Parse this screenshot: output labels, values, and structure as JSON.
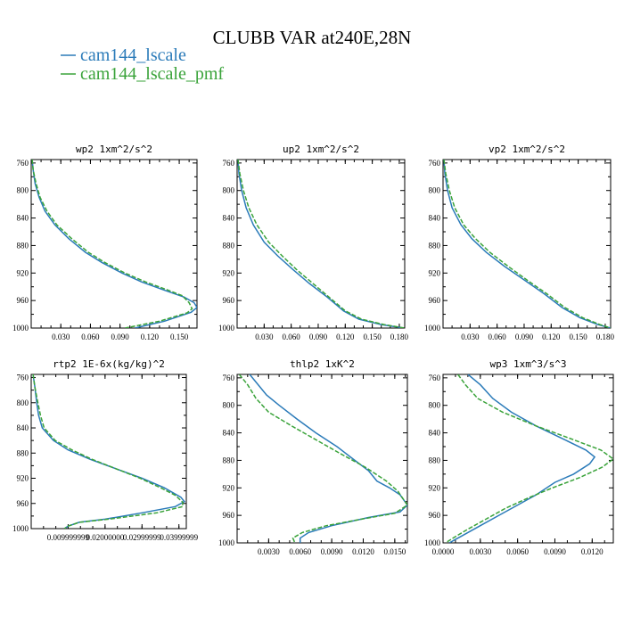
{
  "figure": {
    "title": "CLUBB VAR at240E,28N",
    "legend": [
      {
        "label": "cam144_lscale",
        "color": "#2b7bb9",
        "dash": "solid"
      },
      {
        "label": "cam144_lscale_pmf",
        "color": "#3aa33a",
        "dash": "dashed"
      }
    ]
  },
  "chart_data": [
    {
      "type": "line",
      "title": "wp2  1xm^2/s^2",
      "y_ticks": [
        760,
        800,
        840,
        880,
        920,
        960,
        1000
      ],
      "ylim": [
        755,
        1000
      ],
      "x_ticks": [
        0.03,
        0.06,
        0.09,
        0.12,
        0.15
      ],
      "x_tick_labels": [
        "0.030",
        "0.060",
        "0.090",
        "0.120",
        "0.150"
      ],
      "xlim": [
        0.0,
        0.168
      ],
      "series": [
        {
          "name": "cam144_lscale",
          "color": "#2b7bb9",
          "dash": "solid",
          "points": [
            [
              0.001,
              755
            ],
            [
              0.002,
              770
            ],
            [
              0.004,
              790
            ],
            [
              0.008,
              810
            ],
            [
              0.014,
              830
            ],
            [
              0.024,
              850
            ],
            [
              0.038,
              870
            ],
            [
              0.055,
              890
            ],
            [
              0.072,
              905
            ],
            [
              0.092,
              920
            ],
            [
              0.112,
              933
            ],
            [
              0.135,
              945
            ],
            [
              0.155,
              955
            ],
            [
              0.165,
              963
            ],
            [
              0.168,
              970
            ],
            [
              0.162,
              977
            ],
            [
              0.135,
              990
            ],
            [
              0.105,
              1000
            ]
          ]
        },
        {
          "name": "cam144_lscale_pmf",
          "color": "#3aa33a",
          "dash": "dashed",
          "points": [
            [
              0.001,
              755
            ],
            [
              0.002,
              770
            ],
            [
              0.005,
              790
            ],
            [
              0.009,
              810
            ],
            [
              0.016,
              830
            ],
            [
              0.026,
              850
            ],
            [
              0.041,
              870
            ],
            [
              0.058,
              890
            ],
            [
              0.075,
              905
            ],
            [
              0.095,
              920
            ],
            [
              0.116,
              933
            ],
            [
              0.137,
              944
            ],
            [
              0.153,
              953
            ],
            [
              0.16,
              963
            ],
            [
              0.163,
              972
            ],
            [
              0.158,
              978
            ],
            [
              0.13,
              990
            ],
            [
              0.095,
              1000
            ]
          ]
        }
      ]
    },
    {
      "type": "line",
      "title": "up2  1xm^2/s^2",
      "y_ticks": [
        760,
        800,
        840,
        880,
        920,
        960,
        1000
      ],
      "ylim": [
        755,
        1000
      ],
      "x_ticks": [
        0.03,
        0.06,
        0.09,
        0.12,
        0.15,
        0.18
      ],
      "x_tick_labels": [
        "0.030",
        "0.060",
        "0.090",
        "0.120",
        "0.150",
        "0.180"
      ],
      "xlim": [
        0.0,
        0.186
      ],
      "series": [
        {
          "name": "cam144_lscale",
          "color": "#2b7bb9",
          "dash": "solid",
          "points": [
            [
              0.001,
              755
            ],
            [
              0.002,
              775
            ],
            [
              0.005,
              800
            ],
            [
              0.01,
              825
            ],
            [
              0.018,
              850
            ],
            [
              0.03,
              875
            ],
            [
              0.045,
              895
            ],
            [
              0.062,
              915
            ],
            [
              0.08,
              935
            ],
            [
              0.1,
              955
            ],
            [
              0.118,
              975
            ],
            [
              0.135,
              987
            ],
            [
              0.16,
              995
            ],
            [
              0.185,
              1000
            ]
          ]
        },
        {
          "name": "cam144_lscale_pmf",
          "color": "#3aa33a",
          "dash": "dashed",
          "points": [
            [
              0.001,
              755
            ],
            [
              0.003,
              775
            ],
            [
              0.007,
              800
            ],
            [
              0.013,
              825
            ],
            [
              0.022,
              850
            ],
            [
              0.035,
              875
            ],
            [
              0.05,
              895
            ],
            [
              0.066,
              915
            ],
            [
              0.084,
              935
            ],
            [
              0.102,
              955
            ],
            [
              0.12,
              975
            ],
            [
              0.138,
              987
            ],
            [
              0.163,
              995
            ],
            [
              0.186,
              1000
            ]
          ]
        }
      ]
    },
    {
      "type": "line",
      "title": "vp2  1xm^2/s^2",
      "y_ticks": [
        760,
        800,
        840,
        880,
        920,
        960,
        1000
      ],
      "ylim": [
        755,
        1000
      ],
      "x_ticks": [
        0.03,
        0.06,
        0.09,
        0.12,
        0.15,
        0.18
      ],
      "x_tick_labels": [
        "0.030",
        "0.060",
        "0.090",
        "0.120",
        "0.150",
        "0.180"
      ],
      "xlim": [
        0.0,
        0.186
      ],
      "series": [
        {
          "name": "cam144_lscale",
          "color": "#2b7bb9",
          "dash": "solid",
          "points": [
            [
              0.001,
              755
            ],
            [
              0.002,
              775
            ],
            [
              0.005,
              800
            ],
            [
              0.01,
              825
            ],
            [
              0.02,
              850
            ],
            [
              0.032,
              870
            ],
            [
              0.048,
              890
            ],
            [
              0.068,
              910
            ],
            [
              0.09,
              930
            ],
            [
              0.112,
              950
            ],
            [
              0.132,
              970
            ],
            [
              0.152,
              985
            ],
            [
              0.172,
              995
            ],
            [
              0.186,
              1000
            ]
          ]
        },
        {
          "name": "cam144_lscale_pmf",
          "color": "#3aa33a",
          "dash": "dashed",
          "points": [
            [
              0.001,
              755
            ],
            [
              0.003,
              775
            ],
            [
              0.007,
              800
            ],
            [
              0.013,
              825
            ],
            [
              0.023,
              850
            ],
            [
              0.036,
              870
            ],
            [
              0.052,
              890
            ],
            [
              0.072,
              910
            ],
            [
              0.093,
              930
            ],
            [
              0.115,
              950
            ],
            [
              0.135,
              970
            ],
            [
              0.155,
              985
            ],
            [
              0.174,
              995
            ],
            [
              0.186,
              1000
            ]
          ]
        }
      ]
    },
    {
      "type": "line",
      "title": "rtp2  1E-6x(kg/kg)^2",
      "y_ticks": [
        760,
        800,
        840,
        880,
        920,
        960,
        1000
      ],
      "ylim": [
        755,
        1000
      ],
      "x_ticks": [
        0.01,
        0.02,
        0.03,
        0.04
      ],
      "x_tick_labels": [
        "0.009999999",
        "0.02000000",
        "0.02999999",
        "0.03999999"
      ],
      "xlim": [
        0.0,
        0.042
      ],
      "series": [
        {
          "name": "cam144_lscale",
          "color": "#2b7bb9",
          "dash": "solid",
          "points": [
            [
              0.0005,
              755
            ],
            [
              0.001,
              775
            ],
            [
              0.0015,
              800
            ],
            [
              0.002,
              820
            ],
            [
              0.003,
              840
            ],
            [
              0.006,
              860
            ],
            [
              0.01,
              875
            ],
            [
              0.016,
              890
            ],
            [
              0.023,
              905
            ],
            [
              0.03,
              920
            ],
            [
              0.036,
              935
            ],
            [
              0.0405,
              950
            ],
            [
              0.0415,
              957
            ],
            [
              0.039,
              965
            ],
            [
              0.03,
              975
            ],
            [
              0.02,
              985
            ],
            [
              0.013,
              990
            ],
            [
              0.01,
              996
            ],
            [
              0.009,
              1000
            ]
          ]
        },
        {
          "name": "cam144_lscale_pmf",
          "color": "#3aa33a",
          "dash": "dashed",
          "points": [
            [
              0.0005,
              755
            ],
            [
              0.001,
              775
            ],
            [
              0.0018,
              800
            ],
            [
              0.0025,
              820
            ],
            [
              0.0035,
              840
            ],
            [
              0.0065,
              860
            ],
            [
              0.011,
              875
            ],
            [
              0.0165,
              890
            ],
            [
              0.023,
              905
            ],
            [
              0.0295,
              920
            ],
            [
              0.035,
              935
            ],
            [
              0.039,
              947
            ],
            [
              0.041,
              958
            ],
            [
              0.041,
              965
            ],
            [
              0.034,
              975
            ],
            [
              0.021,
              985
            ],
            [
              0.013,
              990
            ],
            [
              0.01,
              996
            ],
            [
              0.009,
              1000
            ]
          ]
        }
      ]
    },
    {
      "type": "line",
      "title": "thlp2  1xK^2",
      "y_ticks": [
        760,
        800,
        840,
        880,
        920,
        960,
        1000
      ],
      "ylim": [
        755,
        1000
      ],
      "x_ticks": [
        0.003,
        0.006,
        0.009,
        0.012,
        0.015
      ],
      "x_tick_labels": [
        "0.0030",
        "0.0060",
        "0.0090",
        "0.0120",
        "0.0150"
      ],
      "xlim": [
        0.0,
        0.0162
      ],
      "series": [
        {
          "name": "cam144_lscale",
          "color": "#2b7bb9",
          "dash": "solid",
          "points": [
            [
              0.0012,
              755
            ],
            [
              0.002,
              770
            ],
            [
              0.0028,
              785
            ],
            [
              0.004,
              800
            ],
            [
              0.0057,
              820
            ],
            [
              0.0075,
              840
            ],
            [
              0.0095,
              860
            ],
            [
              0.0112,
              880
            ],
            [
              0.0125,
              895
            ],
            [
              0.0133,
              910
            ],
            [
              0.0145,
              920
            ],
            [
              0.0155,
              930
            ],
            [
              0.0162,
              945
            ],
            [
              0.0155,
              955
            ],
            [
              0.0125,
              963
            ],
            [
              0.009,
              975
            ],
            [
              0.0068,
              985
            ],
            [
              0.006,
              993
            ],
            [
              0.006,
              1000
            ]
          ]
        },
        {
          "name": "cam144_lscale_pmf",
          "color": "#3aa33a",
          "dash": "dashed",
          "points": [
            [
              0.0002,
              755
            ],
            [
              0.001,
              770
            ],
            [
              0.0018,
              790
            ],
            [
              0.003,
              810
            ],
            [
              0.0052,
              830
            ],
            [
              0.0075,
              850
            ],
            [
              0.0098,
              870
            ],
            [
              0.0122,
              890
            ],
            [
              0.0142,
              910
            ],
            [
              0.0153,
              925
            ],
            [
              0.0162,
              945
            ],
            [
              0.015,
              957
            ],
            [
              0.012,
              965
            ],
            [
              0.0085,
              975
            ],
            [
              0.0062,
              985
            ],
            [
              0.0053,
              993
            ],
            [
              0.0055,
              1000
            ]
          ]
        }
      ]
    },
    {
      "type": "line",
      "title": "wp3  1xm^3/s^3",
      "y_ticks": [
        760,
        800,
        840,
        880,
        920,
        960,
        1000
      ],
      "ylim": [
        755,
        1000
      ],
      "x_ticks": [
        0.0,
        0.003,
        0.006,
        0.009,
        0.012
      ],
      "x_tick_labels": [
        "0.0000",
        "0.0030",
        "0.0060",
        "0.0090",
        "0.0120"
      ],
      "xlim": [
        0.0,
        0.0137
      ],
      "series": [
        {
          "name": "cam144_lscale",
          "color": "#2b7bb9",
          "dash": "solid",
          "points": [
            [
              0.002,
              755
            ],
            [
              0.003,
              770
            ],
            [
              0.004,
              790
            ],
            [
              0.0055,
              810
            ],
            [
              0.0075,
              830
            ],
            [
              0.0098,
              850
            ],
            [
              0.0115,
              865
            ],
            [
              0.0122,
              875
            ],
            [
              0.0118,
              885
            ],
            [
              0.0105,
              900
            ],
            [
              0.009,
              912
            ],
            [
              0.0075,
              930
            ],
            [
              0.006,
              945
            ],
            [
              0.0045,
              960
            ],
            [
              0.003,
              975
            ],
            [
              0.0015,
              990
            ],
            [
              0.0005,
              1000
            ]
          ]
        },
        {
          "name": "cam144_lscale_pmf",
          "color": "#3aa33a",
          "dash": "dashed",
          "points": [
            [
              0.0012,
              755
            ],
            [
              0.0018,
              770
            ],
            [
              0.0028,
              790
            ],
            [
              0.0048,
              810
            ],
            [
              0.0075,
              830
            ],
            [
              0.0105,
              850
            ],
            [
              0.0127,
              865
            ],
            [
              0.0137,
              878
            ],
            [
              0.0128,
              890
            ],
            [
              0.011,
              905
            ],
            [
              0.0088,
              920
            ],
            [
              0.0068,
              935
            ],
            [
              0.005,
              950
            ],
            [
              0.0035,
              965
            ],
            [
              0.002,
              980
            ],
            [
              0.0008,
              993
            ],
            [
              0.0002,
              1000
            ]
          ]
        }
      ]
    }
  ]
}
